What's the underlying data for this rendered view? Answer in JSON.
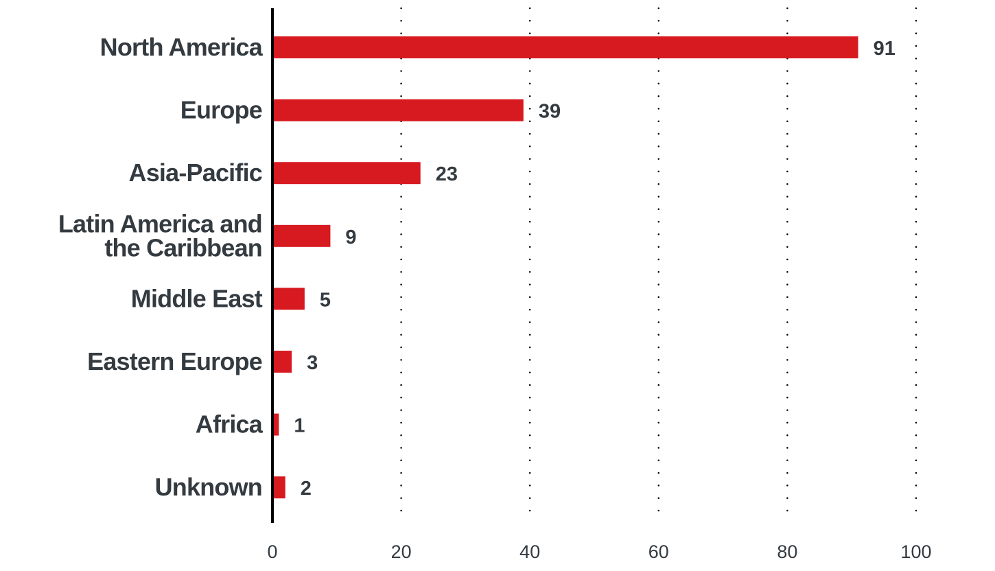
{
  "chart_data": {
    "type": "bar",
    "orientation": "horizontal",
    "title": "",
    "xlabel": "",
    "ylabel": "",
    "categories": [
      [
        "North America"
      ],
      [
        "Europe"
      ],
      [
        "Asia-Pacific"
      ],
      [
        "Latin America and",
        "the Caribbean"
      ],
      [
        "Middle East"
      ],
      [
        "Eastern Europe"
      ],
      [
        "Africa"
      ],
      [
        "Unknown"
      ]
    ],
    "values": [
      91,
      39,
      23,
      9,
      5,
      3,
      1,
      2
    ],
    "value_labels": [
      "91",
      "39",
      "23",
      "9",
      "5",
      "3",
      "1",
      "2"
    ],
    "xlim": [
      0,
      100
    ],
    "x_ticks": [
      0,
      20,
      40,
      60,
      80,
      100
    ],
    "x_tick_labels": [
      "0",
      "20",
      "40",
      "60",
      "80",
      "100"
    ],
    "grid": "dotted vertical",
    "legend": "none",
    "colors": {
      "bar": "#d71920",
      "text": "#333a40",
      "axis": "#000000",
      "grid": "#000000"
    }
  }
}
